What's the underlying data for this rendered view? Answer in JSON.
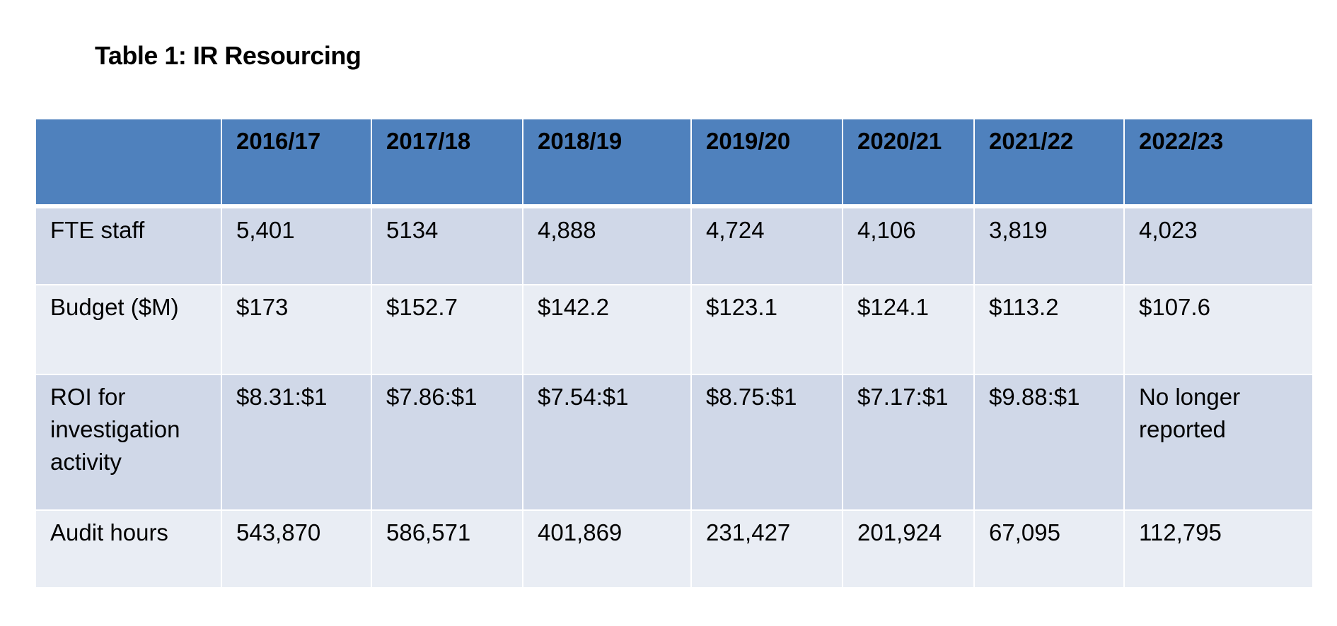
{
  "title": "Table 1: IR Resourcing",
  "table": {
    "header": [
      "",
      "2016/17",
      "2017/18",
      "2018/19",
      "2019/20",
      "2020/21",
      "2021/22",
      "2022/23"
    ],
    "rows": [
      [
        "FTE staff",
        "5,401",
        "5134",
        "4,888",
        "4,724",
        "4,106",
        "3,819",
        "4,023"
      ],
      [
        "Budget ($M)",
        "$173",
        "$152.7",
        "$142.2",
        "$123.1",
        "$124.1",
        "$113.2",
        "$107.6"
      ],
      [
        "ROI for investigation activity",
        "$8.31:$1",
        "$7.86:$1",
        "$7.54:$1",
        "$8.75:$1",
        "$7.17:$1",
        "$9.88:$1",
        "No longer reported"
      ],
      [
        "Audit hours",
        "543,870",
        "586,571",
        "401,869",
        "231,427",
        "201,924",
        "67,095",
        "112,795"
      ]
    ]
  },
  "colors": {
    "header_bg": "#4f81bd",
    "row_odd_bg": "#d0d8e8",
    "row_even_bg": "#e9edf4"
  }
}
